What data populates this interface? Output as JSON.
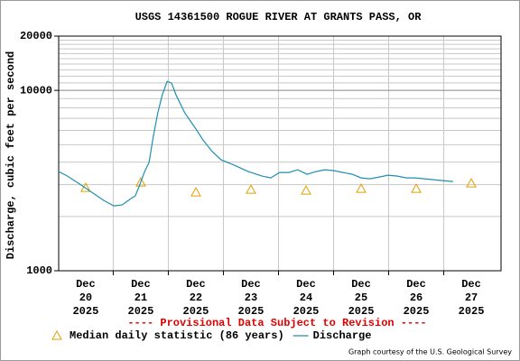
{
  "chart_data": {
    "type": "line",
    "title": "USGS 14361500 ROGUE RIVER AT GRANTS PASS, OR",
    "ylabel": "Discharge, cubic feet per second",
    "note": "---- Provisional Data Subject to Revision ----",
    "credit": "Graph courtesy of the U.S. Geological Survey",
    "log_y": true,
    "grid": true,
    "ylim": [
      1000,
      20000
    ],
    "yticks": [
      1000,
      10000,
      20000
    ],
    "yminor": [
      2000,
      3000,
      4000,
      5000,
      6000,
      7000,
      8000,
      9000,
      11000,
      12000,
      13000,
      14000,
      15000,
      16000,
      17000,
      18000,
      19000
    ],
    "xlim": [
      19.51,
      27.54
    ],
    "xticks": [
      {
        "value": 20,
        "label": [
          "Dec",
          "20",
          "2025"
        ]
      },
      {
        "value": 21,
        "label": [
          "Dec",
          "21",
          "2025"
        ]
      },
      {
        "value": 22,
        "label": [
          "Dec",
          "22",
          "2025"
        ]
      },
      {
        "value": 23,
        "label": [
          "Dec",
          "23",
          "2025"
        ]
      },
      {
        "value": 24,
        "label": [
          "Dec",
          "24",
          "2025"
        ]
      },
      {
        "value": 25,
        "label": [
          "Dec",
          "25",
          "2025"
        ]
      },
      {
        "value": 26,
        "label": [
          "Dec",
          "26",
          "2025"
        ]
      },
      {
        "value": 27,
        "label": [
          "Dec",
          "27",
          "2025"
        ]
      }
    ],
    "xgrid": [
      20.5,
      21.5,
      22.5,
      23.5,
      24.5,
      25.5,
      26.5
    ],
    "series": [
      {
        "name": "Median daily statistic (86 years)",
        "color": "#e0a000",
        "marker": "triangle",
        "x": [
          20,
          21,
          22,
          23,
          24,
          25,
          26,
          27
        ],
        "values": [
          2884,
          3090,
          2722,
          2818,
          2786,
          2851,
          2851,
          3055
        ]
      },
      {
        "name": "Discharge",
        "color": "#1f8fb0",
        "marker": "line",
        "x": [
          19.51,
          19.67,
          19.92,
          20.16,
          20.33,
          20.51,
          20.66,
          20.82,
          20.9,
          20.98,
          21.07,
          21.15,
          21.23,
          21.31,
          21.39,
          21.48,
          21.56,
          21.64,
          21.8,
          21.97,
          22.13,
          22.3,
          22.46,
          22.7,
          22.95,
          23.2,
          23.36,
          23.52,
          23.69,
          23.85,
          24.02,
          24.18,
          24.34,
          24.51,
          24.67,
          24.84,
          25,
          25.16,
          25.33,
          25.49,
          25.66,
          25.82,
          25.98,
          26.15,
          26.31,
          26.48,
          26.67
        ],
        "values": [
          3548,
          3350,
          2985,
          2661,
          2455,
          2291,
          2317,
          2512,
          2600,
          2985,
          3548,
          3981,
          5623,
          7499,
          9441,
          11220,
          10965,
          9441,
          7499,
          6310,
          5309,
          4571,
          4121,
          3846,
          3548,
          3350,
          3273,
          3508,
          3508,
          3631,
          3428,
          3548,
          3631,
          3589,
          3508,
          3428,
          3273,
          3236,
          3311,
          3388,
          3350,
          3273,
          3273,
          3236,
          3199,
          3162,
          3126
        ]
      }
    ]
  }
}
